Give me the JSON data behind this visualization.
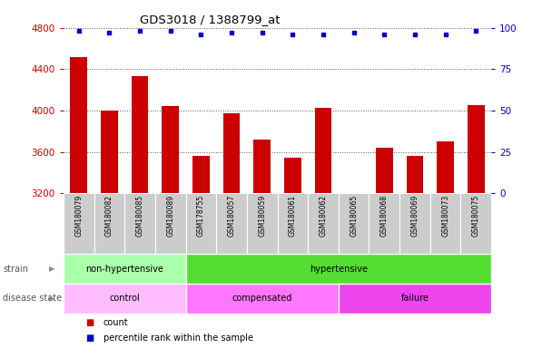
{
  "title": "GDS3018 / 1388799_at",
  "samples": [
    "GSM180079",
    "GSM180082",
    "GSM180085",
    "GSM180089",
    "GSM178755",
    "GSM180057",
    "GSM180059",
    "GSM180061",
    "GSM180062",
    "GSM180065",
    "GSM180068",
    "GSM180069",
    "GSM180073",
    "GSM180075"
  ],
  "counts": [
    4520,
    4000,
    4330,
    4040,
    3560,
    3970,
    3720,
    3545,
    4030,
    3205,
    3640,
    3560,
    3700,
    4050
  ],
  "percentile_ranks": [
    98,
    97,
    98,
    98,
    96,
    97,
    97,
    96,
    96,
    97,
    96,
    96,
    96,
    98
  ],
  "ylim_left": [
    3200,
    4800
  ],
  "ylim_right": [
    0,
    100
  ],
  "yticks_left": [
    3200,
    3600,
    4000,
    4400,
    4800
  ],
  "yticks_right": [
    0,
    25,
    50,
    75,
    100
  ],
  "bar_color": "#cc0000",
  "dot_color": "#0000cc",
  "strain_groups": [
    {
      "label": "non-hypertensive",
      "start": 0,
      "end": 4,
      "color": "#aaffaa"
    },
    {
      "label": "hypertensive",
      "start": 4,
      "end": 14,
      "color": "#55dd33"
    }
  ],
  "disease_groups": [
    {
      "label": "control",
      "start": 0,
      "end": 4,
      "color": "#ffbbff"
    },
    {
      "label": "compensated",
      "start": 4,
      "end": 9,
      "color": "#ff77ff"
    },
    {
      "label": "failure",
      "start": 9,
      "end": 14,
      "color": "#ee44ee"
    }
  ],
  "bar_color_red": "#cc0000",
  "dot_color_blue": "#0000cc",
  "tick_bg_color": "#cccccc",
  "fig_bg": "#ffffff"
}
